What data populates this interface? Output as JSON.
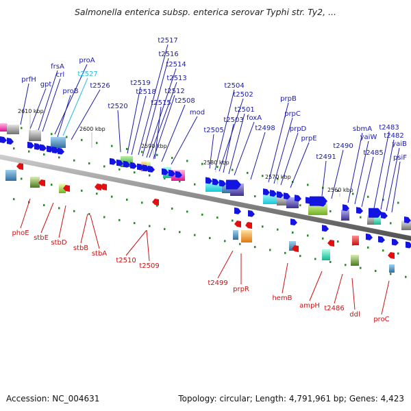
{
  "title": "Salmonella enterica subsp. enterica serovar Typhi str. Ty2, ...",
  "footer": {
    "accession": "Accession: NC_004631",
    "summary": "Topology: circular; Length: 4,791,961 bp; Genes: 4,423"
  },
  "colors": {
    "plus_label": "#1a1aa8",
    "minus_label": "#cc1111",
    "highlight_label": "#22bbdd",
    "gene_arrow": "#1414e0",
    "line_plus": "#1a1aa8",
    "line_minus": "#cc1111",
    "line_highlight": "#22bbdd",
    "tick": "#2a8a2a",
    "backbone": "#777777"
  },
  "ruler": [
    "2610 kbp",
    "2600 kbp",
    "2590 kbp",
    "2580 kbp",
    "2570 kbp",
    "2560 kbp"
  ],
  "plus_genes": [
    "prfH",
    "gpt",
    "frsA",
    "crl",
    "proA",
    "t2527",
    "proB",
    "t2526",
    "t2520",
    "t2519",
    "t2518",
    "t2517",
    "t2516",
    "t2514",
    "t2513",
    "t2512",
    "t2515",
    "t2508",
    "mod",
    "t2505",
    "t2504",
    "t2503",
    "t2502",
    "t2501",
    "foxA",
    "t2498",
    "prpB",
    "prpC",
    "prpD",
    "prpE",
    "t2491",
    "t2490",
    "sbmA",
    "yaiW",
    "t2485",
    "t2483",
    "t2482",
    "yaiB",
    "psiF"
  ],
  "highlight_gene": "t2527",
  "minus_genes": [
    "phoE",
    "stbE",
    "stbD",
    "stbB",
    "stbA",
    "t2510",
    "t2509",
    "t2499",
    "prpR",
    "hemB",
    "ampH",
    "t2486",
    "ddl",
    "proC"
  ]
}
